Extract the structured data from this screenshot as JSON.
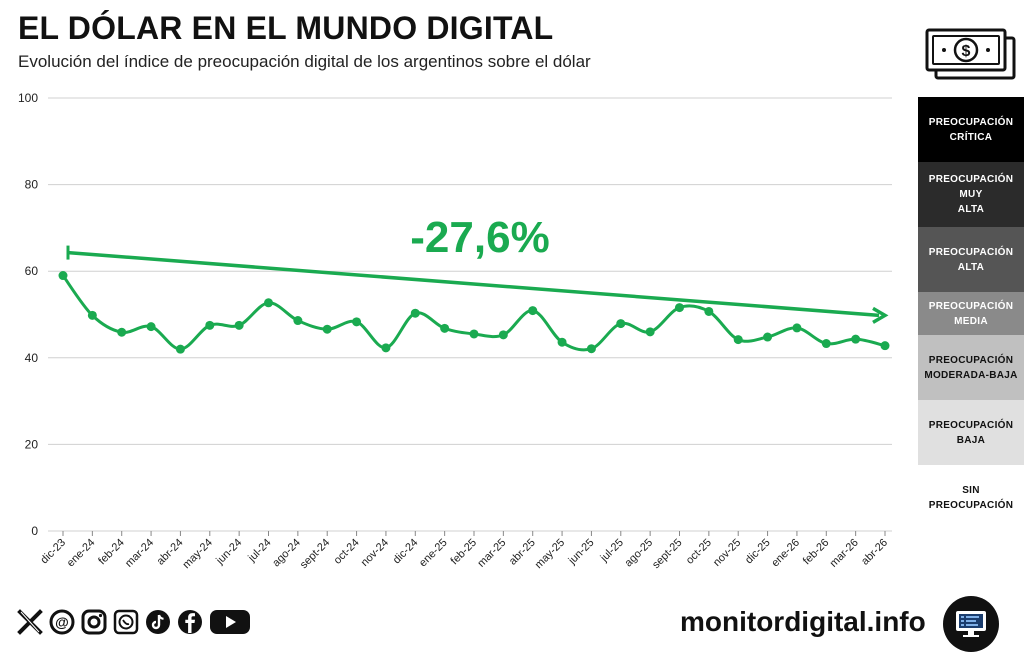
{
  "header": {
    "title": "EL DÓLAR EN EL MUNDO DIGITAL",
    "subtitle": "Evolución del índice de preocupación digital de los argentinos sobre el dólar"
  },
  "chart_data": {
    "type": "line",
    "title": "EL DÓLAR EN EL MUNDO DIGITAL",
    "subtitle": "Evolución del índice de preocupación digital de los argentinos sobre el dólar",
    "xlabel": "",
    "ylabel": "",
    "ylim": [
      0,
      100
    ],
    "yticks": [
      0,
      20,
      40,
      60,
      80,
      100
    ],
    "grid": true,
    "color": "#1aaa50",
    "categories": [
      "dic-23",
      "ene-24",
      "feb-24",
      "mar-24",
      "abr-24",
      "may-24",
      "jun-24",
      "jul-24",
      "ago-24",
      "sept-24",
      "oct-24",
      "nov-24",
      "dic-24",
      "ene-25",
      "feb-25",
      "mar-25",
      "abr-25",
      "may-25",
      "jun-25",
      "jul-25",
      "ago-25",
      "sept-25",
      "oct-25",
      "nov-25",
      "dic-25",
      "ene-26",
      "feb-26",
      "mar-26",
      "abr-26"
    ],
    "series": [
      {
        "name": "Índice de preocupación digital",
        "values": [
          59.0,
          49.8,
          45.9,
          47.2,
          42.0,
          47.5,
          47.5,
          52.7,
          48.6,
          46.6,
          48.3,
          42.3,
          50.3,
          46.8,
          45.5,
          45.3,
          50.9,
          43.6,
          42.1,
          47.9,
          46.0,
          51.6,
          50.7,
          44.2,
          44.8,
          46.9,
          43.3,
          44.3,
          42.8
        ]
      }
    ],
    "trend": {
      "label": "-27,6%",
      "start": 64.3,
      "end": 49.8
    }
  },
  "legend": [
    {
      "label": "PREOCUPACIÓN CRÍTICA",
      "bg": "#000000",
      "fg": "#ffffff"
    },
    {
      "label": "PREOCUPACIÓN MUY ALTA",
      "bg": "#2b2b2b",
      "fg": "#ffffff"
    },
    {
      "label": "PREOCUPACIÓN ALTA",
      "bg": "#555555",
      "fg": "#ffffff"
    },
    {
      "label": "PREOCUPACIÓN MEDIA",
      "bg": "#8a8a8a",
      "fg": "#ffffff"
    },
    {
      "label": "PREOCUPACIÓN MODERADA-BAJA",
      "bg": "#c0c0c0",
      "fg": "#111111"
    },
    {
      "label": "PREOCUPACIÓN BAJA",
      "bg": "#e0e0e0",
      "fg": "#111111"
    },
    {
      "label": "SIN PREOCUPACIÓN",
      "bg": "#ffffff",
      "fg": "#111111"
    }
  ],
  "footer": {
    "website": "monitordigital.info",
    "social_icons": [
      "x-icon",
      "threads-icon",
      "instagram-icon",
      "whatsapp-icon",
      "tiktok-icon",
      "facebook-icon",
      "youtube-icon"
    ]
  }
}
